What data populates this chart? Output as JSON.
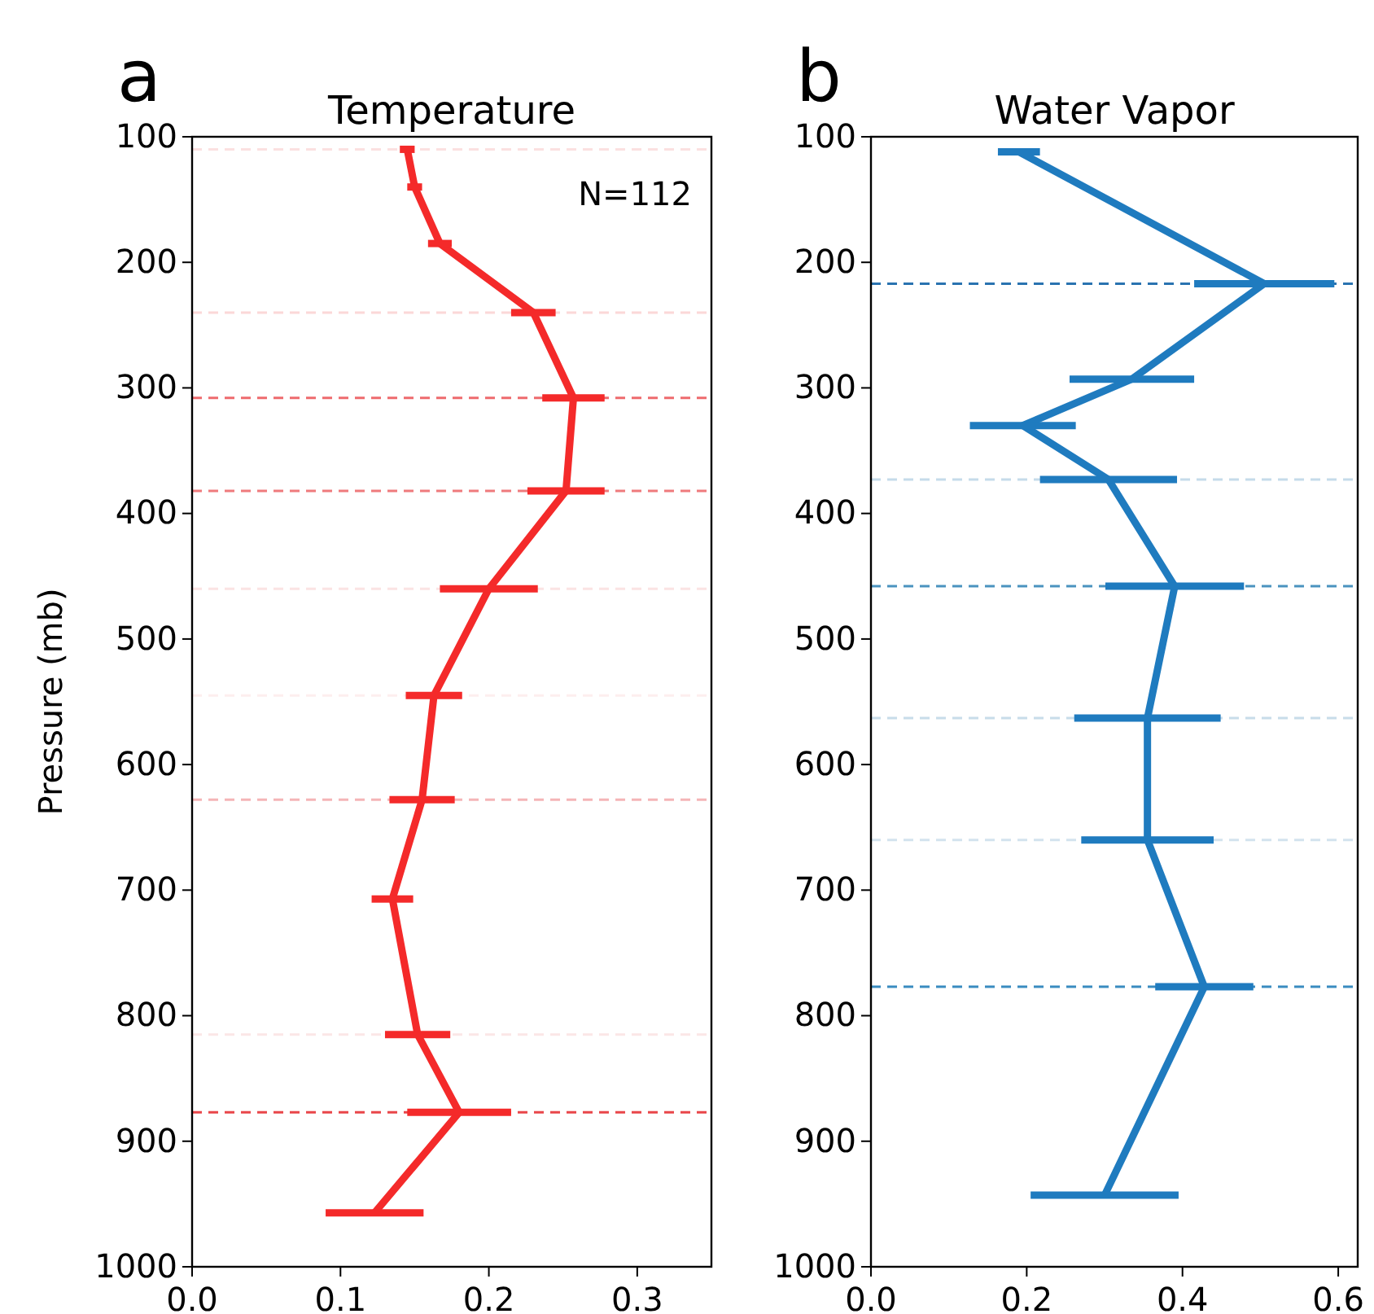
{
  "chart_data": [
    {
      "type": "line",
      "title": "Temperature",
      "ylabel": "Pressure (mb)",
      "annotations": [
        "a",
        "N=112"
      ],
      "xlim": [
        0,
        0.35
      ],
      "xticks": [
        {
          "value": 0,
          "label": "0.0"
        },
        {
          "value": 0.1,
          "label": "0.1"
        },
        {
          "value": 0.2,
          "label": "0.2"
        },
        {
          "value": 0.3,
          "label": "0.3"
        }
      ],
      "ylim": [
        1000,
        100
      ],
      "yticks": [
        100,
        200,
        300,
        400,
        500,
        600,
        700,
        800,
        900,
        1000
      ],
      "grid": false,
      "marker": "none",
      "line_style": "solid",
      "series": [
        {
          "color": "#f42a2a",
          "x": [
            0.145,
            0.15,
            0.167,
            0.23,
            0.257,
            0.252,
            0.2,
            0.163,
            0.155,
            0.135,
            0.152,
            0.18,
            0.123
          ],
          "values": [
            110,
            140,
            185,
            240,
            308,
            382,
            460,
            545,
            628,
            707,
            815,
            877,
            957
          ],
          "xerrors": [
            0.005,
            0.005,
            0.008,
            0.015,
            0.021,
            0.026,
            0.033,
            0.019,
            0.022,
            0.014,
            0.022,
            0.035,
            0.033
          ]
        }
      ],
      "ref_lines": [
        {
          "axis": "y",
          "value": 110,
          "color": "#fbe0e0",
          "line_style": "dashed"
        },
        {
          "axis": "y",
          "value": 240,
          "color": "#fbd8d8",
          "line_style": "dashed"
        },
        {
          "axis": "y",
          "value": 308,
          "color": "#ee6b6e",
          "line_style": "dashed"
        },
        {
          "axis": "y",
          "value": 382,
          "color": "#ef7a7c",
          "line_style": "dashed"
        },
        {
          "axis": "y",
          "value": 460,
          "color": "#fbe3e3",
          "line_style": "dashed"
        },
        {
          "axis": "y",
          "value": 545,
          "color": "#fdeeee",
          "line_style": "dashed"
        },
        {
          "axis": "y",
          "value": 628,
          "color": "#f5b5b7",
          "line_style": "dashed"
        },
        {
          "axis": "y",
          "value": 815,
          "color": "#fbe6e6",
          "line_style": "dashed"
        },
        {
          "axis": "y",
          "value": 877,
          "color": "#e9464a",
          "line_style": "dashed"
        }
      ]
    },
    {
      "type": "line",
      "title": "Water Vapor",
      "annotations": [
        "b"
      ],
      "xlim": [
        0,
        0.625
      ],
      "xticks": [
        {
          "value": 0,
          "label": "0.0"
        },
        {
          "value": 0.2,
          "label": "0.2"
        },
        {
          "value": 0.4,
          "label": "0.4"
        },
        {
          "value": 0.6,
          "label": "0.6"
        }
      ],
      "ylim": [
        1000,
        100
      ],
      "yticks": [
        100,
        200,
        300,
        400,
        500,
        600,
        700,
        800,
        900,
        1000
      ],
      "grid": false,
      "marker": "none",
      "line_style": "solid",
      "series": [
        {
          "color": "#1f7bbf",
          "x": [
            0.19,
            0.505,
            0.335,
            0.195,
            0.305,
            0.39,
            0.355,
            0.355,
            0.428,
            0.3
          ],
          "values": [
            112,
            217,
            293,
            330,
            373,
            458,
            563,
            660,
            777,
            943
          ],
          "xerrors": [
            0.027,
            0.09,
            0.08,
            0.068,
            0.088,
            0.089,
            0.094,
            0.085,
            0.063,
            0.095
          ]
        }
      ],
      "ref_lines": [
        {
          "axis": "y",
          "value": 217,
          "color": "#2a73b0",
          "line_style": "dashed"
        },
        {
          "axis": "y",
          "value": 373,
          "color": "#c5dbea",
          "line_style": "dashed"
        },
        {
          "axis": "y",
          "value": 458,
          "color": "#4b93bf",
          "line_style": "dashed"
        },
        {
          "axis": "y",
          "value": 563,
          "color": "#c8dcea",
          "line_style": "dashed"
        },
        {
          "axis": "y",
          "value": 660,
          "color": "#d3e3ee",
          "line_style": "dashed"
        },
        {
          "axis": "y",
          "value": 777,
          "color": "#3a8cc0",
          "line_style": "dashed"
        }
      ]
    }
  ]
}
